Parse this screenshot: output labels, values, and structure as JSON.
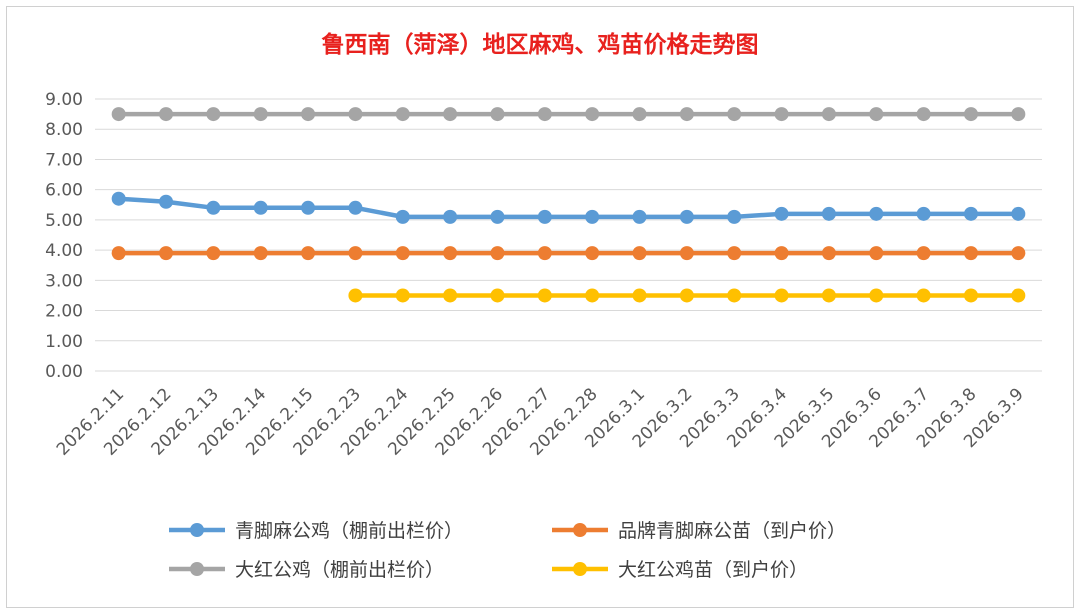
{
  "chart_data": {
    "type": "line",
    "title": "鲁西南（菏泽）地区麻鸡、鸡苗价格走势图",
    "categories": [
      "2026.2.11",
      "2026.2.12",
      "2026.2.13",
      "2026.2.14",
      "2026.2.15",
      "2026.2.23",
      "2026.2.24",
      "2026.2.25",
      "2026.2.26",
      "2026.2.27",
      "2026.2.28",
      "2026.3.1",
      "2026.3.2",
      "2026.3.3",
      "2026.3.4",
      "2026.3.5",
      "2026.3.6",
      "2026.3.7",
      "2026.3.8",
      "2026.3.9"
    ],
    "ylim": [
      0,
      9
    ],
    "yticks": [
      "0.00",
      "1.00",
      "2.00",
      "3.00",
      "4.00",
      "5.00",
      "6.00",
      "7.00",
      "8.00",
      "9.00"
    ],
    "grid": true,
    "legend_position": "bottom",
    "series": [
      {
        "name": "青脚麻公鸡（棚前出栏价）",
        "color": "#5b9bd5",
        "values": [
          5.7,
          5.6,
          5.4,
          5.4,
          5.4,
          5.4,
          5.1,
          5.1,
          5.1,
          5.1,
          5.1,
          5.1,
          5.1,
          5.1,
          5.2,
          5.2,
          5.2,
          5.2,
          5.2,
          5.2
        ]
      },
      {
        "name": "品牌青脚麻公苗（到户价）",
        "color": "#ed7d31",
        "values": [
          3.9,
          3.9,
          3.9,
          3.9,
          3.9,
          3.9,
          3.9,
          3.9,
          3.9,
          3.9,
          3.9,
          3.9,
          3.9,
          3.9,
          3.9,
          3.9,
          3.9,
          3.9,
          3.9,
          3.9
        ]
      },
      {
        "name": "大红公鸡（棚前出栏价）",
        "color": "#a5a5a5",
        "values": [
          8.5,
          8.5,
          8.5,
          8.5,
          8.5,
          8.5,
          8.5,
          8.5,
          8.5,
          8.5,
          8.5,
          8.5,
          8.5,
          8.5,
          8.5,
          8.5,
          8.5,
          8.5,
          8.5,
          8.5
        ]
      },
      {
        "name": "大红公鸡苗（到户价）",
        "color": "#ffc000",
        "values": [
          null,
          null,
          null,
          null,
          null,
          2.5,
          2.5,
          2.5,
          2.5,
          2.5,
          2.5,
          2.5,
          2.5,
          2.5,
          2.5,
          2.5,
          2.5,
          2.5,
          2.5,
          2.5
        ]
      }
    ]
  }
}
